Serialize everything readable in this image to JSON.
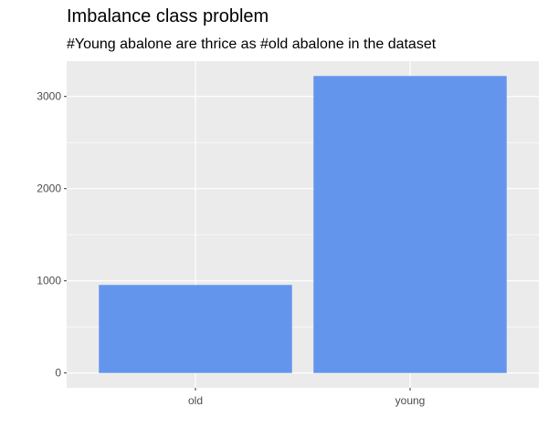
{
  "chart_data": {
    "type": "bar",
    "title": "Imbalance class problem",
    "subtitle": "#Young abalone are thrice as #old abalone in the dataset",
    "xlabel": "",
    "ylabel": "",
    "categories": [
      "old",
      "young"
    ],
    "values": [
      955,
      3222
    ],
    "ylim": [
      -161,
      3383
    ],
    "yticks": [
      0,
      1000,
      2000,
      3000
    ],
    "ytick_labels": [
      "0",
      "1000",
      "2000",
      "3000"
    ],
    "grid": true,
    "legend": "none",
    "colors": {
      "bar": "#6495ED",
      "panel": "#EBEBEB",
      "grid": "#FFFFFF",
      "tick_text": "#4D4D4D",
      "tick_mark": "#333333"
    }
  }
}
